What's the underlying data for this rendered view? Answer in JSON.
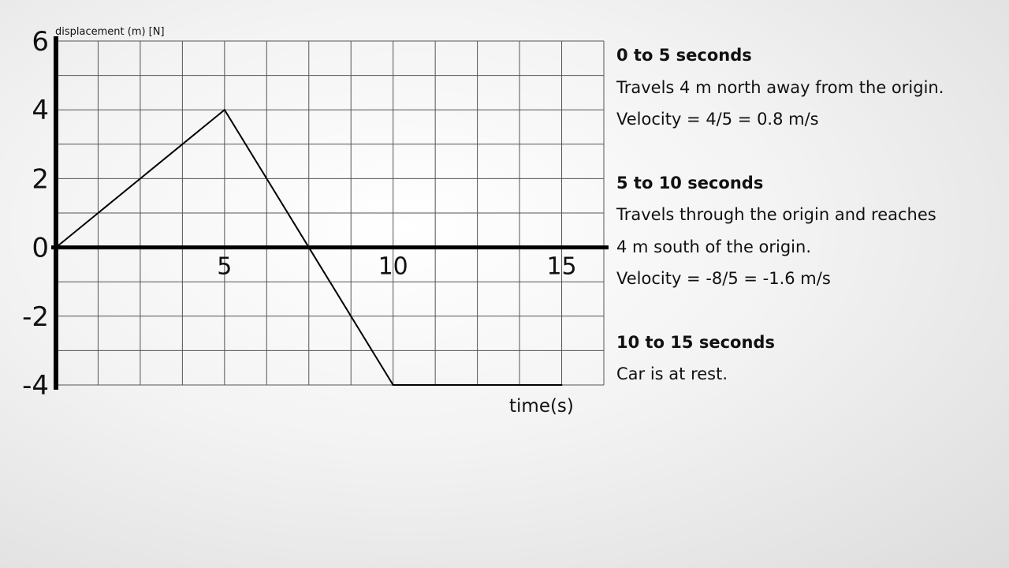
{
  "chart_data": {
    "type": "line",
    "title": "",
    "ylabel": "displacement (m) [N]",
    "xlabel": "time(s)",
    "xlim": [
      0,
      16.25
    ],
    "ylim": [
      -4,
      6
    ],
    "grid": true,
    "y_ticks": [
      "6",
      "4",
      "2",
      "0",
      "-2",
      "-4"
    ],
    "y_tick_values": [
      6,
      4,
      2,
      0,
      -2,
      -4
    ],
    "x_ticks": [
      "5",
      "10",
      "15"
    ],
    "x_tick_values": [
      5,
      10,
      15
    ],
    "series": [
      {
        "x": [
          0,
          5,
          10,
          15
        ],
        "y": [
          0,
          4,
          -4,
          -4
        ]
      }
    ]
  },
  "notes": [
    {
      "title": "0 to 5 seconds",
      "lines": [
        "Travels 4 m north away from the origin.",
        "Velocity = 4/5 = 0.8 m/s"
      ]
    },
    {
      "title": "5 to 10 seconds",
      "lines": [
        "Travels through the origin and reaches",
        "4 m south of the origin.",
        "Velocity = -8/5 = -1.6 m/s"
      ]
    },
    {
      "title": "10 to 15 seconds",
      "lines": [
        "Car is at rest."
      ]
    }
  ]
}
